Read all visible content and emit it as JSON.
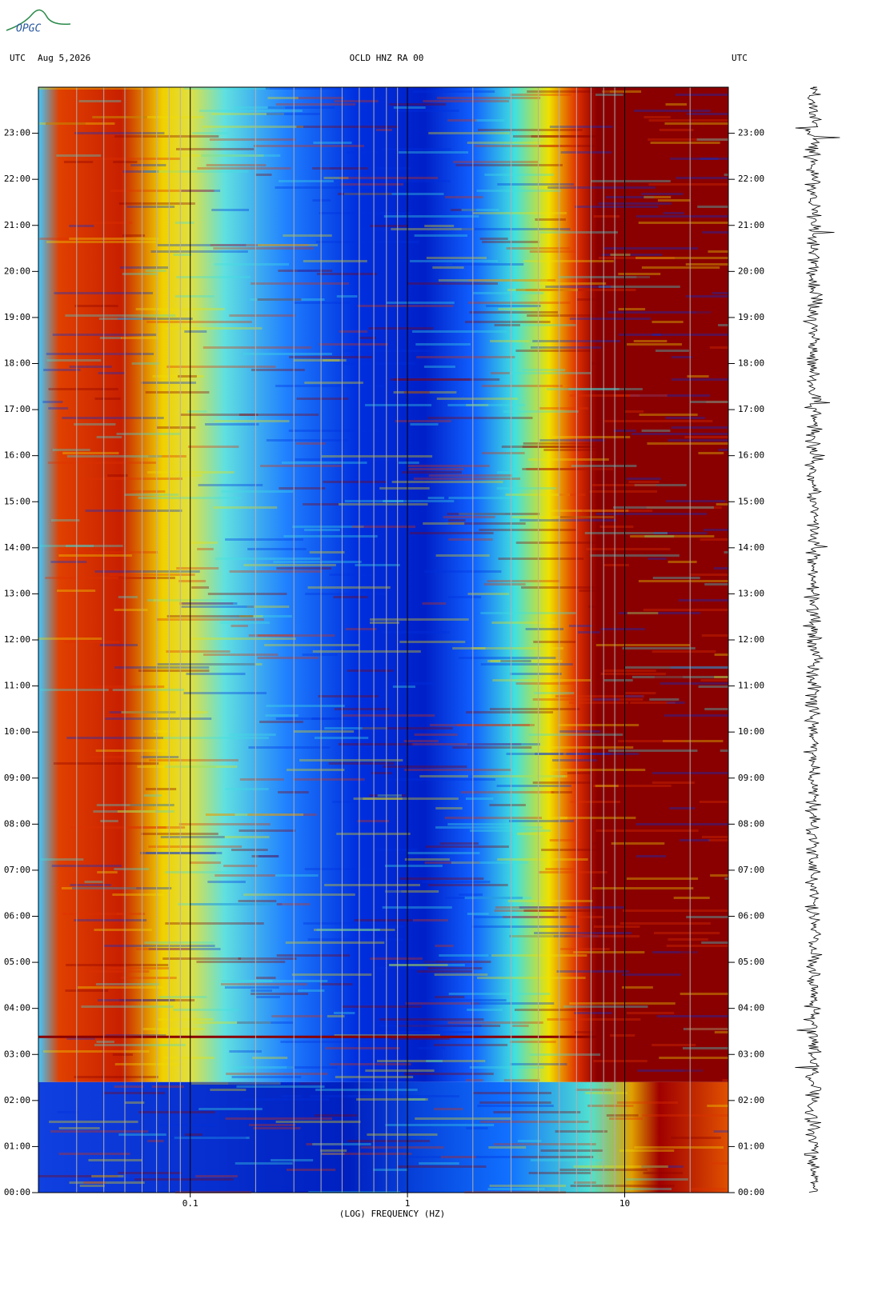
{
  "logo": "OPGC",
  "chart_data": {
    "type": "spectrogram",
    "title": "OCLD HNZ RA 00",
    "left_label": "UTC",
    "date": "Aug 5,2026",
    "right_label": "UTC",
    "x_label": "(LOG) FREQUENCY (HZ)",
    "xscale": "log",
    "xlim": [
      0.02,
      30
    ],
    "xticks": [
      0.1,
      1,
      10
    ],
    "xminorticks": [
      0.03,
      0.04,
      0.05,
      0.06,
      0.07,
      0.08,
      0.09,
      0.2,
      0.3,
      0.4,
      0.5,
      0.6,
      0.7,
      0.8,
      0.9,
      2,
      3,
      4,
      5,
      6,
      7,
      8,
      9,
      20
    ],
    "ylim": [
      0,
      24
    ],
    "yticks": [
      {
        "value": 0,
        "label": "00:00"
      },
      {
        "value": 1,
        "label": "01:00"
      },
      {
        "value": 2,
        "label": "02:00"
      },
      {
        "value": 3,
        "label": "03:00"
      },
      {
        "value": 4,
        "label": "04:00"
      },
      {
        "value": 5,
        "label": "05:00"
      },
      {
        "value": 6,
        "label": "06:00"
      },
      {
        "value": 7,
        "label": "07:00"
      },
      {
        "value": 8,
        "label": "08:00"
      },
      {
        "value": 9,
        "label": "09:00"
      },
      {
        "value": 10,
        "label": "10:00"
      },
      {
        "value": 11,
        "label": "11:00"
      },
      {
        "value": 12,
        "label": "12:00"
      },
      {
        "value": 13,
        "label": "13:00"
      },
      {
        "value": 14,
        "label": "14:00"
      },
      {
        "value": 15,
        "label": "15:00"
      },
      {
        "value": 16,
        "label": "16:00"
      },
      {
        "value": 17,
        "label": "17:00"
      },
      {
        "value": 18,
        "label": "18:00"
      },
      {
        "value": 19,
        "label": "19:00"
      },
      {
        "value": 20,
        "label": "20:00"
      },
      {
        "value": 21,
        "label": "21:00"
      },
      {
        "value": 22,
        "label": "22:00"
      },
      {
        "value": 23,
        "label": "23:00"
      }
    ]
  }
}
